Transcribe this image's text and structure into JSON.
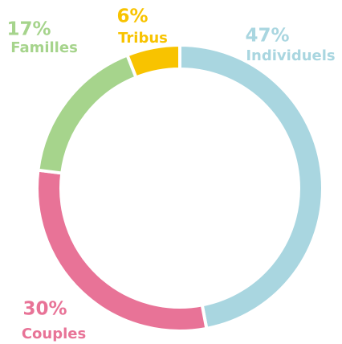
{
  "chart_data": {
    "type": "donut",
    "categories": [
      "Individuels",
      "Couples",
      "Familles",
      "Tribus"
    ],
    "values": [
      47,
      30,
      17,
      6
    ],
    "value_labels": [
      "47%",
      "30%",
      "17%",
      "6%"
    ],
    "colors": [
      "#a9d6e0",
      "#e87397",
      "#a6d48c",
      "#f8c300"
    ]
  }
}
